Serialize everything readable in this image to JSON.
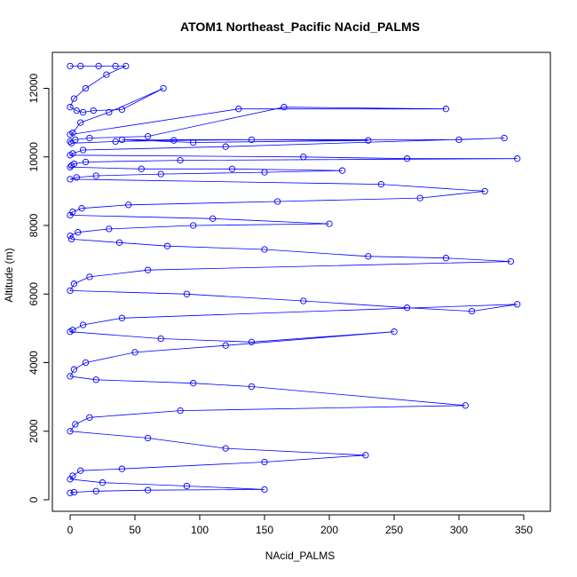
{
  "chart_data": {
    "type": "line",
    "title": "ATOM1 Northeast_Pacific NAcid_PALMS",
    "xlabel": "NAcid_PALMS",
    "ylabel": "Altitude (m)",
    "xlim": [
      0,
      355
    ],
    "ylim": [
      0,
      12900
    ],
    "xticks": [
      0,
      50,
      100,
      150,
      200,
      250,
      300,
      350
    ],
    "yticks": [
      0,
      2000,
      4000,
      6000,
      8000,
      10000,
      12000
    ],
    "grid": false,
    "legend": "none",
    "color": "#0000ff",
    "series": [
      {
        "x": [
          0,
          8,
          22,
          35,
          43,
          28,
          12,
          3,
          0,
          5,
          10,
          18,
          40,
          72,
          30,
          8,
          2,
          0,
          130,
          290,
          165,
          60,
          15,
          4,
          0,
          1,
          35,
          80,
          140,
          230,
          95,
          40,
          300,
          335,
          120,
          10,
          2,
          0,
          180,
          260,
          345,
          85,
          12,
          3,
          1,
          0,
          55,
          125,
          210,
          150,
          70,
          20,
          5,
          0,
          240,
          320,
          270,
          160,
          45,
          9,
          2,
          0,
          110,
          200,
          95,
          30,
          6,
          0,
          1,
          38,
          75,
          150,
          230,
          290,
          340,
          60,
          15,
          3,
          0,
          90,
          180,
          260,
          310,
          345,
          40,
          10,
          2,
          0,
          70,
          140,
          250,
          120,
          50,
          12,
          3,
          0,
          20,
          95,
          140,
          305,
          85,
          15,
          4,
          0,
          60,
          120,
          228,
          150,
          40,
          8,
          2,
          0,
          25,
          90,
          150,
          60,
          20,
          3,
          0
        ],
        "y": [
          12650,
          12650,
          12650,
          12650,
          12650,
          12400,
          12000,
          11700,
          11450,
          11350,
          11300,
          11350,
          11380,
          12000,
          11300,
          11000,
          10700,
          10650,
          11400,
          11400,
          11450,
          10600,
          10550,
          10500,
          10450,
          10400,
          10450,
          10480,
          10500,
          10480,
          10420,
          10500,
          10500,
          10550,
          10300,
          10200,
          10100,
          10050,
          10000,
          9950,
          9950,
          9900,
          9850,
          9800,
          9750,
          9700,
          9650,
          9650,
          9600,
          9550,
          9500,
          9450,
          9400,
          9350,
          9200,
          9000,
          8800,
          8700,
          8600,
          8500,
          8400,
          8300,
          8200,
          8050,
          8000,
          7900,
          7800,
          7700,
          7600,
          7500,
          7400,
          7300,
          7100,
          7050,
          6950,
          6700,
          6500,
          6300,
          6100,
          6000,
          5800,
          5600,
          5500,
          5700,
          5300,
          5100,
          4950,
          4900,
          4700,
          4600,
          4900,
          4500,
          4300,
          4000,
          3800,
          3600,
          3500,
          3400,
          3300,
          2750,
          2600,
          2400,
          2200,
          2000,
          1800,
          1500,
          1300,
          1100,
          900,
          850,
          700,
          600,
          500,
          400,
          300,
          280,
          250,
          220,
          200
        ]
      }
    ]
  }
}
